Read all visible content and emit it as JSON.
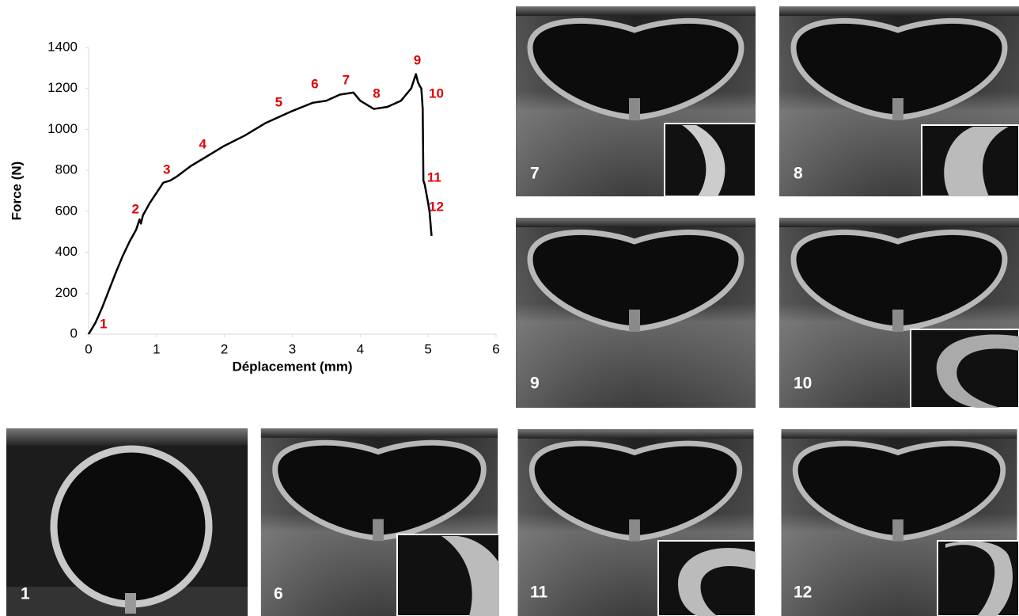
{
  "chart_data": {
    "type": "line",
    "x_label": "Déplacement (mm)",
    "y_label": "Force (N)",
    "x": [
      0,
      0.1,
      0.2,
      0.3,
      0.4,
      0.5,
      0.6,
      0.7,
      0.75,
      0.77,
      0.8,
      0.9,
      1.0,
      1.1,
      1.2,
      1.3,
      1.5,
      1.75,
      2.0,
      2.3,
      2.6,
      2.8,
      3.0,
      3.3,
      3.5,
      3.7,
      3.9,
      4.0,
      4.2,
      4.4,
      4.6,
      4.75,
      4.82,
      4.85,
      4.88,
      4.9,
      4.92,
      4.93,
      4.95,
      5.0,
      5.02,
      5.05
    ],
    "series": [
      {
        "color": "#000000",
        "values": [
          0,
          55,
          130,
          215,
          300,
          380,
          450,
          510,
          560,
          540,
          580,
          640,
          690,
          740,
          750,
          770,
          820,
          870,
          920,
          970,
          1030,
          1060,
          1090,
          1130,
          1140,
          1170,
          1180,
          1140,
          1100,
          1110,
          1140,
          1200,
          1270,
          1230,
          1210,
          1200,
          1100,
          750,
          730,
          640,
          600,
          480
        ]
      }
    ],
    "xlim": [
      0,
      6
    ],
    "xticks": [
      0,
      1,
      2,
      3,
      4,
      5,
      6
    ],
    "ylim": [
      0,
      1400
    ],
    "yticks": [
      0,
      200,
      400,
      600,
      800,
      1000,
      1200,
      1400
    ],
    "grid": false,
    "annotation_color": "#e00000",
    "annotations": [
      {
        "text": "1",
        "x": 0.22,
        "y": 46
      },
      {
        "text": "2",
        "x": 0.69,
        "y": 607
      },
      {
        "text": "3",
        "x": 1.15,
        "y": 800
      },
      {
        "text": "4",
        "x": 1.68,
        "y": 924
      },
      {
        "text": "5",
        "x": 2.8,
        "y": 1129
      },
      {
        "text": "6",
        "x": 3.33,
        "y": 1218
      },
      {
        "text": "7",
        "x": 3.79,
        "y": 1237
      },
      {
        "text": "8",
        "x": 4.24,
        "y": 1172
      },
      {
        "text": "9",
        "x": 4.84,
        "y": 1334
      },
      {
        "text": "10",
        "x": 5.12,
        "y": 1172
      },
      {
        "text": "11",
        "x": 5.09,
        "y": 762
      },
      {
        "text": "12",
        "x": 5.12,
        "y": 619
      }
    ]
  },
  "photos": [
    {
      "label": "7"
    },
    {
      "label": "8"
    },
    {
      "label": "9"
    },
    {
      "label": "10"
    },
    {
      "label": "11"
    },
    {
      "label": "12"
    },
    {
      "label": "1"
    },
    {
      "label": "6"
    }
  ]
}
